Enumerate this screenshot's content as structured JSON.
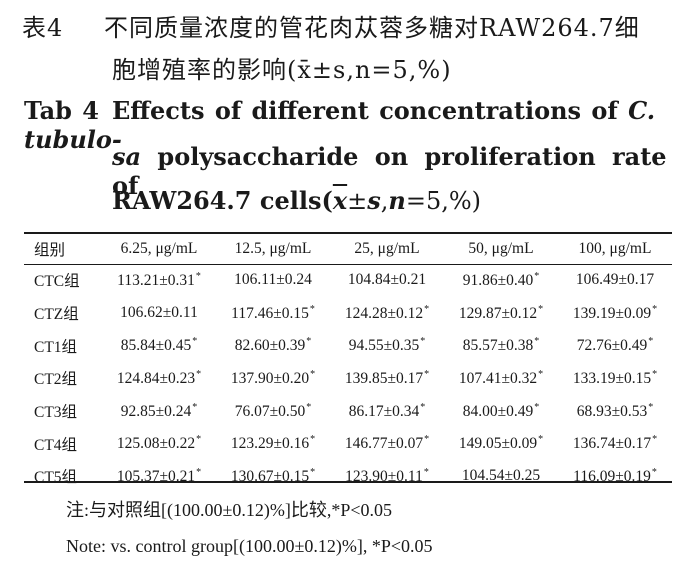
{
  "caption": {
    "cn_label": "表4",
    "cn_line1": "不同质量浓度的管花肉苁蓉多糖对RAW264.7细",
    "cn_line2": "胞增殖率的影响(x̄±s,n=5,%)",
    "en_label": "Tab 4",
    "en_line1_a": "Effects of different concentrations of",
    "en_line1_b": "C. tubulo-",
    "en_line2_a": "sa",
    "en_line2_b": "polysaccharide on proliferation rate of",
    "en_line3_a": "RAW264.7 cells(",
    "en_line3_xbar": "x",
    "en_line3_b": "±",
    "en_line3_s": "s",
    "en_line3_c": ",",
    "en_line3_n": "n",
    "en_line3_d": "=5,%)"
  },
  "table": {
    "headers": [
      "组别",
      "6.25, μg/mL",
      "12.5, μg/mL",
      "25, μg/mL",
      "50, μg/mL",
      "100, μg/mL"
    ],
    "rows": [
      [
        {
          "v": "CTC组"
        },
        {
          "v": "113.21±0.31",
          "s": "*"
        },
        {
          "v": "106.11±0.24",
          "s": ""
        },
        {
          "v": "104.84±0.21",
          "s": ""
        },
        {
          "v": "91.86±0.40",
          "s": "*"
        },
        {
          "v": "106.49±0.17",
          "s": ""
        }
      ],
      [
        {
          "v": "CTZ组"
        },
        {
          "v": "106.62±0.11",
          "s": ""
        },
        {
          "v": "117.46±0.15",
          "s": "*"
        },
        {
          "v": "124.28±0.12",
          "s": "*"
        },
        {
          "v": "129.87±0.12",
          "s": "*"
        },
        {
          "v": "139.19±0.09",
          "s": "*"
        }
      ],
      [
        {
          "v": "CT1组"
        },
        {
          "v": "85.84±0.45",
          "s": "*"
        },
        {
          "v": "82.60±0.39",
          "s": "*"
        },
        {
          "v": "94.55±0.35",
          "s": "*"
        },
        {
          "v": "85.57±0.38",
          "s": "*"
        },
        {
          "v": "72.76±0.49",
          "s": "*"
        }
      ],
      [
        {
          "v": "CT2组"
        },
        {
          "v": "124.84±0.23",
          "s": "*"
        },
        {
          "v": "137.90±0.20",
          "s": "*"
        },
        {
          "v": "139.85±0.17",
          "s": "*"
        },
        {
          "v": "107.41±0.32",
          "s": "*"
        },
        {
          "v": "133.19±0.15",
          "s": "*"
        }
      ],
      [
        {
          "v": "CT3组"
        },
        {
          "v": "92.85±0.24",
          "s": "*"
        },
        {
          "v": "76.07±0.50",
          "s": "*"
        },
        {
          "v": "86.17±0.34",
          "s": "*"
        },
        {
          "v": "84.00±0.49",
          "s": "*"
        },
        {
          "v": "68.93±0.53",
          "s": "*"
        }
      ],
      [
        {
          "v": "CT4组"
        },
        {
          "v": "125.08±0.22",
          "s": "*"
        },
        {
          "v": "123.29±0.16",
          "s": "*"
        },
        {
          "v": "146.77±0.07",
          "s": "*"
        },
        {
          "v": "149.05±0.09",
          "s": "*"
        },
        {
          "v": "136.74±0.17",
          "s": "*"
        }
      ],
      [
        {
          "v": "CT5组"
        },
        {
          "v": "105.37±0.21",
          "s": "*"
        },
        {
          "v": "130.67±0.15",
          "s": "*"
        },
        {
          "v": "123.90±0.11",
          "s": "*"
        },
        {
          "v": "104.54±0.25",
          "s": ""
        },
        {
          "v": "116.09±0.19",
          "s": "*"
        }
      ]
    ]
  },
  "notes": {
    "cn": "注:与对照组[(100.00±0.12)%]比较,*P<0.05",
    "en": "Note: vs. control group[(100.00±0.12)%], *P<0.05"
  }
}
